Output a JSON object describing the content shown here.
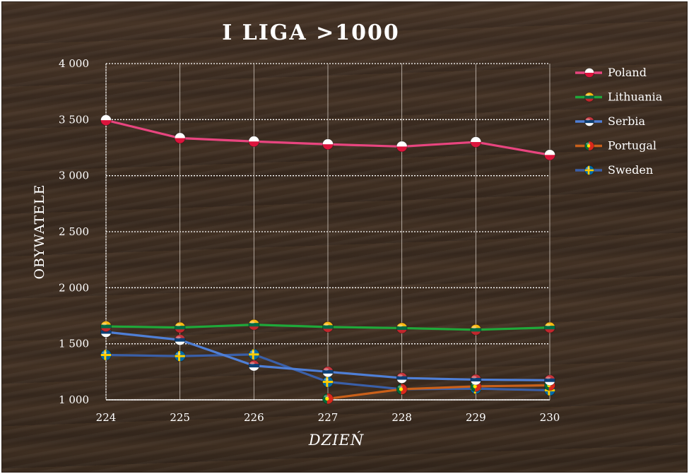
{
  "chart_data": {
    "type": "line",
    "title": "I LIGA >1000",
    "xlabel": "DZIEŃ",
    "ylabel": "OBYWATELE",
    "x": [
      224,
      225,
      226,
      227,
      228,
      229,
      230
    ],
    "x_tick_labels": [
      "224",
      "225",
      "226",
      "227",
      "228",
      "229",
      "230"
    ],
    "ylim": [
      1000,
      4000
    ],
    "y_ticks": [
      1000,
      1500,
      2000,
      2500,
      3000,
      3500,
      4000
    ],
    "y_tick_labels": [
      "1 000",
      "1 500",
      "2 000",
      "2 500",
      "3 000",
      "3 500",
      "4 000"
    ],
    "grid": true,
    "legend_position": "top-right",
    "series": [
      {
        "name": "Poland",
        "color": "#e8457f",
        "flag": "poland-flag",
        "values": [
          3495,
          3335,
          3305,
          3280,
          3260,
          3300,
          3185
        ]
      },
      {
        "name": "Lithuania",
        "color": "#1fa83a",
        "flag": "lithuania-flag",
        "values": [
          1655,
          1645,
          1670,
          1650,
          1640,
          1625,
          1645
        ]
      },
      {
        "name": "Serbia",
        "color": "#4f7fd6",
        "flag": "serbia-flag",
        "values": [
          1605,
          1535,
          1305,
          1250,
          1195,
          1180,
          1175
        ]
      },
      {
        "name": "Portugal",
        "color": "#c9601a",
        "flag": "portugal-flag",
        "values": [
          null,
          null,
          null,
          1010,
          1095,
          1120,
          1130
        ]
      },
      {
        "name": "Sweden",
        "color": "#3a5fa8",
        "flag": "sweden-flag",
        "values": [
          1400,
          1390,
          1405,
          1160,
          1095,
          1100,
          1085
        ]
      }
    ]
  }
}
